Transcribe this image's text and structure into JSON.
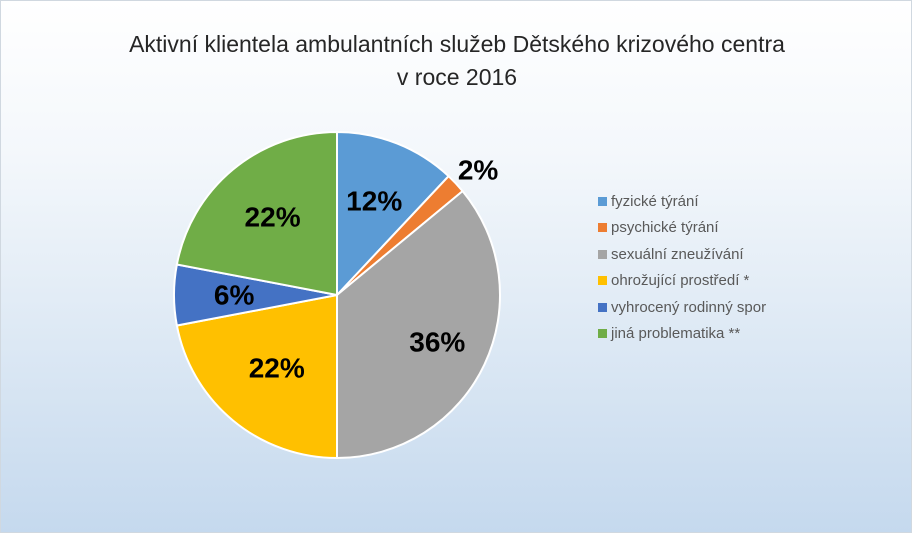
{
  "chart_data": {
    "type": "pie",
    "title": "Aktivní klientela ambulantních služeb Dětského krizového centra",
    "subtitle": "v roce 2016",
    "categories": [
      "fyzické týrání",
      "psychické týrání",
      "sexuální zneužívání",
      "ohrožující prostředí *",
      "vyhrocený rodinný spor",
      "jiná problematika **"
    ],
    "values": [
      12,
      2,
      36,
      22,
      6,
      22
    ],
    "labels": [
      "12%",
      "2%",
      "36%",
      "22%",
      "6%",
      "22%"
    ],
    "colors": [
      "#5b9bd5",
      "#ed7d31",
      "#a5a5a5",
      "#ffc000",
      "#4472c4",
      "#70ad47"
    ],
    "legend": "right"
  }
}
